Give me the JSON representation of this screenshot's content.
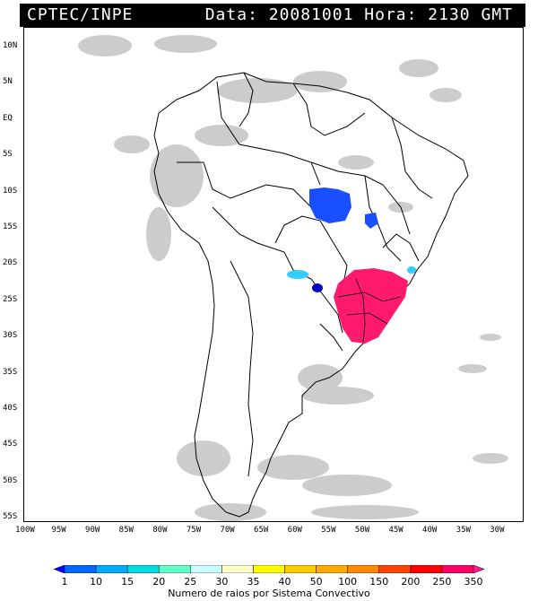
{
  "header": {
    "org": "CPTEC/INPE",
    "meta": "Data: 20081001 Hora: 2130 GMT"
  },
  "map": {
    "lat_labels": [
      "10N",
      "5N",
      "EQ",
      "5S",
      "10S",
      "15S",
      "20S",
      "25S",
      "30S",
      "35S",
      "40S",
      "45S",
      "50S",
      "55S"
    ],
    "lon_labels": [
      "100W",
      "95W",
      "90W",
      "85W",
      "80W",
      "75W",
      "70W",
      "65W",
      "60W",
      "55W",
      "50W",
      "45W",
      "40W",
      "35W",
      "30W"
    ],
    "colors": {
      "land_outline": "#000000",
      "cloud_gray": "#bdbdbd",
      "storm_magenta": "#ff1a6e",
      "storm_blue": "#1a4fff",
      "storm_darkblue": "#0000c8",
      "storm_cyan": "#33ccff"
    }
  },
  "colorbar": {
    "labels": [
      "1",
      "10",
      "15",
      "20",
      "25",
      "30",
      "35",
      "40",
      "50",
      "100",
      "150",
      "200",
      "250",
      "350"
    ],
    "colors": [
      "#0000ff",
      "#0066ff",
      "#00aaff",
      "#00dddd",
      "#66ffcc",
      "#ccffff",
      "#ffffcc",
      "#ffff00",
      "#ffcc00",
      "#ffaa00",
      "#ff8800",
      "#ff4400",
      "#ff0000",
      "#ff0066",
      "#ff1a8a"
    ],
    "caption": "Numero de raios por Sistema Convectivo"
  }
}
